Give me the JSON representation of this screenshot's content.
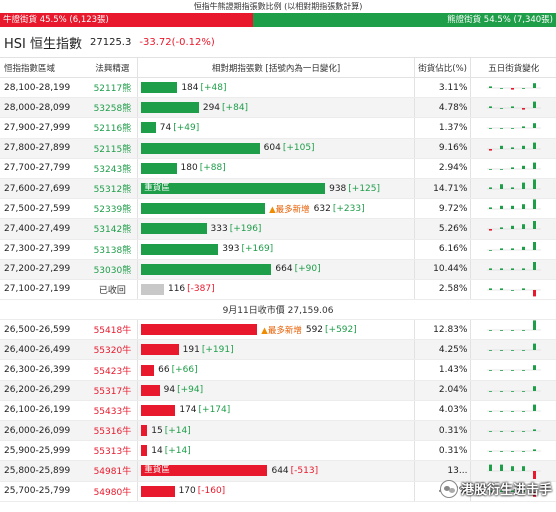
{
  "ratio": {
    "title": "恒指牛熊證期指張數比例 (以相對期指張數計算)",
    "bull_label": "牛證街貨 45.5% (6,123張)",
    "bear_label": "熊證街貨 54.5% (7,340張)",
    "bull_fraction": 0.455,
    "bull_color": "#e8192c",
    "bear_color": "#1f9e4a"
  },
  "index": {
    "name": "HSI 恒生指數",
    "price": "27125.3",
    "change": "-33.72(-0.12%)"
  },
  "columns": {
    "range": "恒指指數區域",
    "code": "法興精選",
    "bar": "相對期指張數 [括號內為一日變化]",
    "pct": "街貨佔比(%)",
    "spark": "五日街貨變化"
  },
  "bear_rows": [
    {
      "range": "28,100-28,199",
      "code": "52117熊",
      "value": 184,
      "change": "[+48]",
      "pct": "3.11%",
      "spark": [
        1,
        0,
        -1,
        0,
        3
      ]
    },
    {
      "range": "28,000-28,099",
      "code": "53258熊",
      "value": 294,
      "change": "[+84]",
      "pct": "4.78%",
      "spark": [
        1,
        0,
        1,
        -1,
        4
      ]
    },
    {
      "range": "27,900-27,999",
      "code": "52116熊",
      "value": 74,
      "change": "[+49]",
      "pct": "1.37%",
      "spark": [
        0,
        0,
        0,
        1,
        3
      ]
    },
    {
      "range": "27,800-27,899",
      "code": "52115熊",
      "value": 604,
      "change": "[+105]",
      "pct": "9.16%",
      "spark": [
        -1,
        2,
        1,
        2,
        4
      ]
    },
    {
      "range": "27,700-27,799",
      "code": "53243熊",
      "value": 180,
      "change": "[+88]",
      "pct": "2.94%",
      "spark": [
        0,
        0,
        1,
        2,
        4
      ]
    },
    {
      "range": "27,600-27,699",
      "code": "55312熊",
      "value": 938,
      "change": "[+125]",
      "pct": "14.71%",
      "spark": [
        1,
        3,
        1,
        4,
        6
      ],
      "tag": "重貨區"
    },
    {
      "range": "27,500-27,599",
      "code": "52339熊",
      "value": 632,
      "change": "[+233]",
      "pct": "9.72%",
      "spark": [
        1,
        2,
        2,
        3,
        6
      ],
      "new": "最多新增"
    },
    {
      "range": "27,400-27,499",
      "code": "53142熊",
      "value": 333,
      "change": "[+196]",
      "pct": "5.26%",
      "spark": [
        -1,
        1,
        2,
        3,
        5
      ]
    },
    {
      "range": "27,300-27,399",
      "code": "53138熊",
      "value": 393,
      "change": "[+169]",
      "pct": "6.16%",
      "spark": [
        0,
        1,
        1,
        2,
        5
      ]
    },
    {
      "range": "27,200-27,299",
      "code": "53030熊",
      "value": 664,
      "change": "[+90]",
      "pct": "10.44%",
      "spark": [
        1,
        1,
        1,
        1,
        5
      ]
    },
    {
      "range": "27,100-27,199",
      "code": "已收回",
      "value": 116,
      "change": "[-387]",
      "pct": "2.58%",
      "spark": [
        1,
        1,
        0,
        1,
        -4
      ],
      "called": true
    }
  ],
  "divider": "9月11日收市價 27,159.06",
  "bull_rows": [
    {
      "range": "26,500-26,599",
      "code": "55418牛",
      "value": 592,
      "change": "[+592]",
      "pct": "12.83%",
      "spark": [
        0,
        0,
        0,
        0,
        6
      ],
      "new": "最多新增"
    },
    {
      "range": "26,400-26,499",
      "code": "55320牛",
      "value": 191,
      "change": "[+191]",
      "pct": "4.25%",
      "spark": [
        0,
        0,
        0,
        0,
        4
      ]
    },
    {
      "range": "26,300-26,399",
      "code": "55423牛",
      "value": 66,
      "change": "[+66]",
      "pct": "1.43%",
      "spark": [
        0,
        0,
        0,
        0,
        3
      ]
    },
    {
      "range": "26,200-26,299",
      "code": "55317牛",
      "value": 94,
      "change": "[+94]",
      "pct": "2.04%",
      "spark": [
        0,
        0,
        0,
        0,
        3
      ]
    },
    {
      "range": "26,100-26,199",
      "code": "55433牛",
      "value": 174,
      "change": "[+174]",
      "pct": "4.03%",
      "spark": [
        0,
        0,
        0,
        0,
        4
      ]
    },
    {
      "range": "26,000-26,099",
      "code": "55316牛",
      "value": 15,
      "change": "[+14]",
      "pct": "0.31%",
      "spark": [
        0,
        0,
        0,
        0,
        1
      ]
    },
    {
      "range": "25,900-25,999",
      "code": "55313牛",
      "value": 14,
      "change": "[+14]",
      "pct": "0.31%",
      "spark": [
        0,
        0,
        0,
        0,
        1
      ]
    },
    {
      "range": "25,800-25,899",
      "code": "54981牛",
      "value": 644,
      "change": "[-513]",
      "pct": "13...",
      "spark": [
        4,
        4,
        3,
        3,
        -5
      ],
      "tag": "重貨區"
    },
    {
      "range": "25,700-25,799",
      "code": "54980牛",
      "value": 170,
      "change": "[-160]",
      "pct": "4.07%",
      "spark": [
        1,
        1,
        1,
        1,
        -3
      ]
    }
  ],
  "watermark": "港股衍生进击手",
  "bar_max": 1000
}
